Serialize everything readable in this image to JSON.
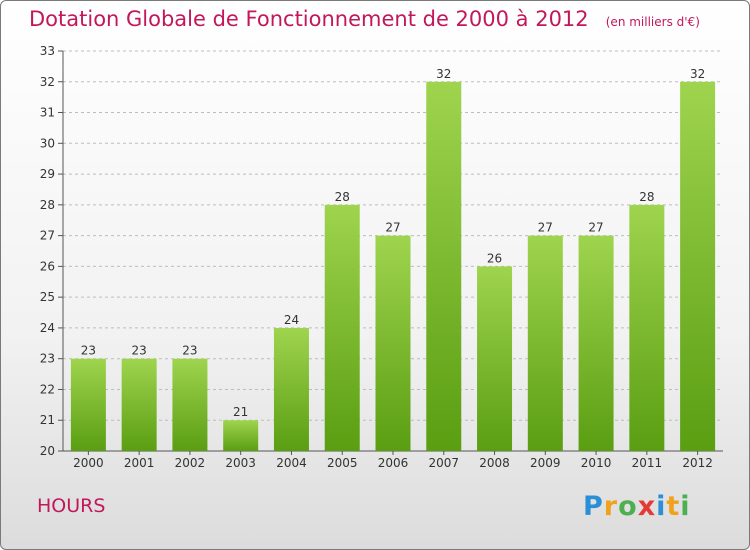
{
  "header": {
    "title": "Dotation Globale de Fonctionnement de 2000 à 2012",
    "subtitle": "(en milliers d'€)"
  },
  "footer": {
    "commune": "HOURS",
    "brand": [
      "P",
      "r",
      "o",
      "x",
      "i",
      "t",
      "i"
    ],
    "brand_colors": [
      "#2a8fd6",
      "#f0a21c",
      "#4caf50",
      "#e53935",
      "#2a8fd6",
      "#f0a21c",
      "#4caf50"
    ]
  },
  "colors": {
    "bar_top": "#9fd44e",
    "bar_bottom": "#5a9e12",
    "title": "#c2185b",
    "grid": "#bdbdbd"
  },
  "chart_data": {
    "type": "bar",
    "title": "Dotation Globale de Fonctionnement de 2000 à 2012",
    "subtitle": "(en milliers d'€)",
    "categories": [
      "2000",
      "2001",
      "2002",
      "2003",
      "2004",
      "2005",
      "2006",
      "2007",
      "2008",
      "2009",
      "2010",
      "2011",
      "2012"
    ],
    "values": [
      23,
      23,
      23,
      21,
      24,
      28,
      27,
      32,
      26,
      27,
      27,
      28,
      32
    ],
    "ylim": [
      20,
      33
    ],
    "yticks": [
      20,
      21,
      22,
      23,
      24,
      25,
      26,
      27,
      28,
      29,
      30,
      31,
      32,
      33
    ],
    "grid": "horizontal dashed",
    "legend": "none"
  }
}
